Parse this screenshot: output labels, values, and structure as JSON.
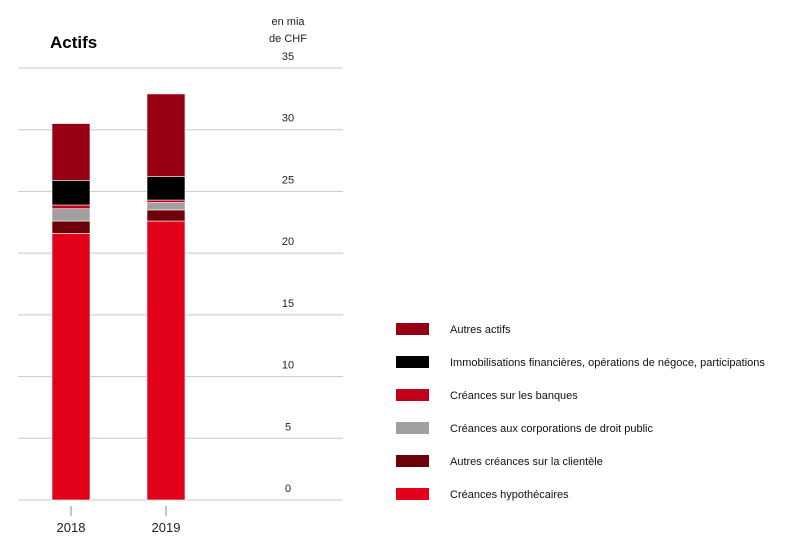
{
  "chart_data": {
    "type": "bar",
    "stacked": true,
    "title": "Actifs",
    "ylabel": "en mia de CHF",
    "ylabel_lines": [
      "en mia",
      "de CHF"
    ],
    "ylim": [
      0,
      35
    ],
    "yticks": [
      "0",
      "5",
      "10",
      "15",
      "20",
      "25",
      "30",
      "35"
    ],
    "grid": true,
    "legend_position": "right",
    "categories": [
      "2018",
      "2019"
    ],
    "series": [
      {
        "name": "Créances hypothécaires",
        "color": "#e2001a",
        "values": [
          21.6,
          22.6
        ]
      },
      {
        "name": "Autres créances sur la clientèle",
        "color": "#6e0008",
        "values": [
          1.0,
          0.9
        ]
      },
      {
        "name": "Créances aux corporations de droit public",
        "color": "#a0a0a0",
        "values": [
          1.0,
          0.6
        ]
      },
      {
        "name": "Créances sur les banques",
        "color": "#c0001d",
        "values": [
          0.3,
          0.2
        ]
      },
      {
        "name": "Immobilisations financières, opérations de négoce, participations",
        "color": "#000000",
        "values": [
          2.0,
          1.9
        ]
      },
      {
        "name": "Autres actifs",
        "color": "#960012",
        "values": [
          4.6,
          6.7
        ]
      }
    ]
  }
}
